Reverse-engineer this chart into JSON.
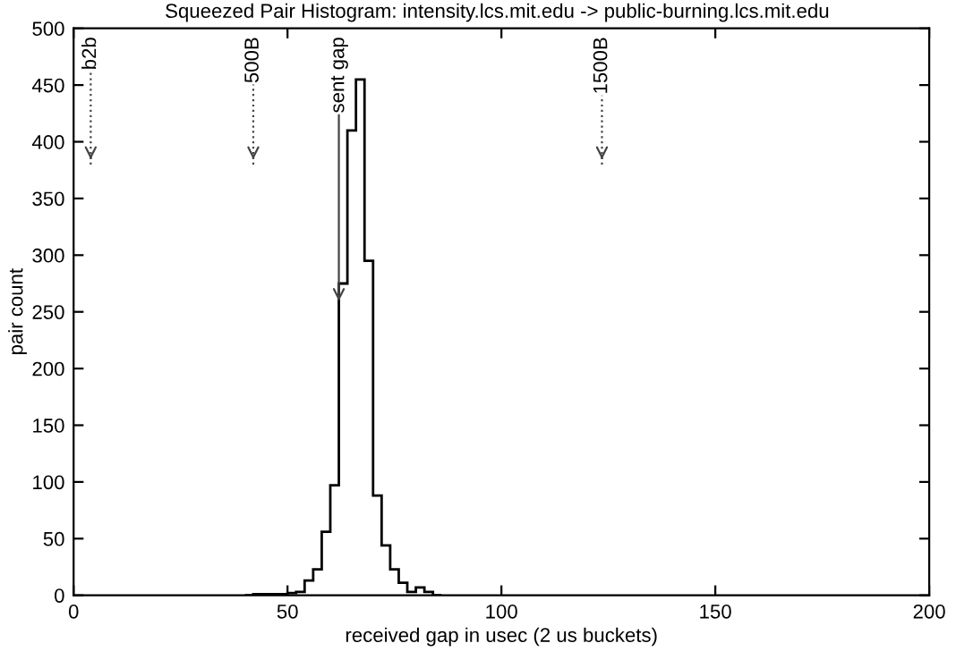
{
  "chart_data": {
    "type": "histogram",
    "title": "Squeezed Pair Histogram: intensity.lcs.mit.edu -> public-burning.lcs.mit.edu",
    "xlabel": "received gap in usec (2 us buckets)",
    "ylabel": "pair count",
    "bins": [
      40,
      42,
      44,
      46,
      48,
      50,
      52,
      54,
      56,
      58,
      60,
      62,
      64,
      66,
      68,
      70,
      72,
      74,
      76,
      78,
      80,
      82,
      84,
      86
    ],
    "values": [
      0,
      1,
      1,
      1,
      1,
      2,
      3,
      13,
      23,
      56,
      97,
      275,
      410,
      455,
      295,
      88,
      44,
      23,
      11,
      3,
      7,
      3,
      0
    ],
    "color": "#000000",
    "xlim": [
      0,
      200
    ],
    "xticks": [
      0,
      50,
      100,
      150,
      200
    ],
    "ylim": [
      0,
      500
    ],
    "yticks": [
      0,
      50,
      100,
      150,
      200,
      250,
      300,
      350,
      400,
      450,
      500
    ],
    "grid": false,
    "ref_lines": [
      {
        "axis": "x",
        "value": 4,
        "label": "b2b",
        "line_style": "dotted"
      },
      {
        "axis": "x",
        "value": 42,
        "label": "500B",
        "line_style": "dotted"
      },
      {
        "axis": "x",
        "value": 123.5,
        "label": "1500B",
        "line_style": "dotted"
      }
    ],
    "annotations": [
      {
        "text": "sent gap",
        "x": 62,
        "y": 255
      }
    ]
  }
}
